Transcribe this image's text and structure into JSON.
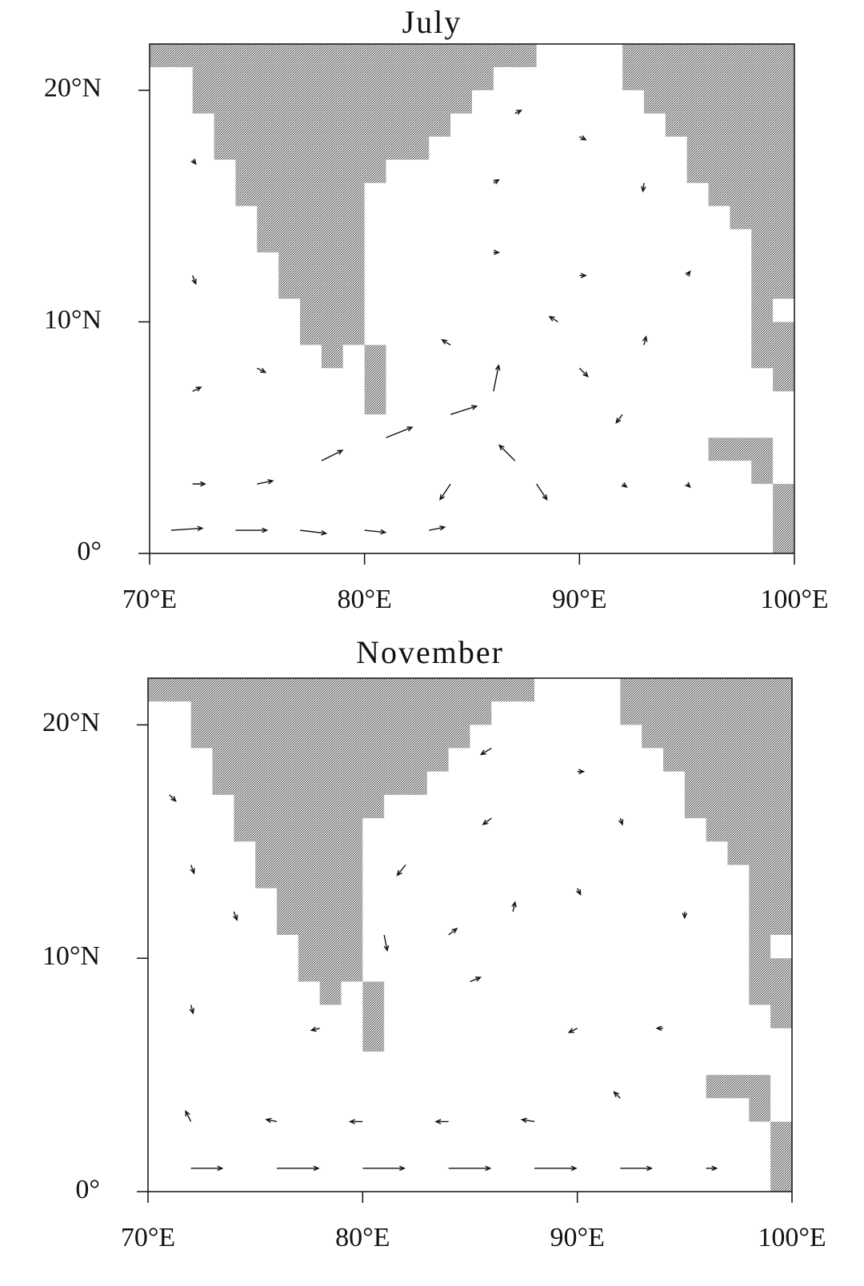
{
  "chart_data": [
    {
      "type": "quiver",
      "title": "July",
      "xlim": [
        70,
        100
      ],
      "ylim": [
        0,
        22
      ],
      "xticks": [
        {
          "value": 70,
          "label": "70°E"
        },
        {
          "value": 80,
          "label": "80°E"
        },
        {
          "value": 90,
          "label": "90°E"
        },
        {
          "value": 100,
          "label": "100°E"
        }
      ],
      "yticks": [
        {
          "value": 0,
          "label": "0°"
        },
        {
          "value": 10,
          "label": "10°N"
        },
        {
          "value": 20,
          "label": "20°N"
        }
      ],
      "color": "#111111",
      "lon": [
        71,
        74,
        77,
        80,
        83,
        72,
        75,
        78,
        81,
        84,
        86,
        87,
        84,
        88,
        72,
        75,
        72,
        72,
        84,
        90,
        92,
        89,
        93,
        86,
        90,
        86,
        90,
        87,
        93,
        92,
        95,
        95
      ],
      "lat": [
        1,
        1,
        1,
        1,
        1,
        3,
        3,
        4,
        5,
        6,
        7,
        4,
        3,
        3,
        7,
        8,
        12,
        17,
        9,
        8,
        6,
        10,
        9,
        13,
        12,
        16,
        18,
        19,
        16,
        3,
        3,
        12
      ],
      "u": [
        3,
        3,
        2.5,
        2,
        1.5,
        1.2,
        1.5,
        2,
        2.5,
        2.5,
        0.5,
        -1.5,
        -1,
        1,
        0.8,
        0.8,
        0.3,
        0.3,
        -0.8,
        0.8,
        -0.6,
        -0.8,
        0.2,
        0.5,
        0.6,
        0.5,
        0.6,
        0.6,
        -0.1,
        0.4,
        0.3,
        0.3
      ],
      "v": [
        0.2,
        0,
        -0.3,
        -0.2,
        0.3,
        0,
        0.3,
        1,
        1,
        0.8,
        2.5,
        1.5,
        -1.5,
        -1.5,
        0.4,
        -0.4,
        -0.8,
        -0.4,
        0.5,
        -0.8,
        -0.8,
        0.5,
        0.8,
        0,
        0,
        0.3,
        -0.3,
        0.3,
        -0.8,
        -0.3,
        -0.3,
        0.4
      ]
    },
    {
      "type": "quiver",
      "title": "November",
      "xlim": [
        70,
        100
      ],
      "ylim": [
        0,
        22
      ],
      "xticks": [
        {
          "value": 70,
          "label": "70°E"
        },
        {
          "value": 80,
          "label": "80°E"
        },
        {
          "value": 90,
          "label": "90°E"
        },
        {
          "value": 100,
          "label": "100°E"
        }
      ],
      "yticks": [
        {
          "value": 0,
          "label": "0°"
        },
        {
          "value": 10,
          "label": "10°N"
        },
        {
          "value": 20,
          "label": "20°N"
        }
      ],
      "color": "#111111",
      "lon": [
        72,
        76,
        80,
        84,
        88,
        92,
        96,
        72,
        76,
        80,
        84,
        88,
        92,
        72,
        72,
        71,
        74,
        82,
        81,
        84,
        85,
        87,
        86,
        86,
        90,
        92,
        90,
        95,
        90,
        94,
        78
      ],
      "lat": [
        1,
        1,
        1,
        1,
        1,
        1,
        1,
        3,
        3,
        3,
        3,
        3,
        4,
        8,
        14,
        17,
        12,
        14,
        11,
        11,
        9,
        12,
        16,
        19,
        18,
        16,
        13,
        12,
        7,
        7,
        7
      ],
      "u": [
        3,
        4,
        4,
        4,
        4,
        3,
        1,
        -0.5,
        -1,
        -1.2,
        -1.2,
        -1.2,
        -0.6,
        0.2,
        0.3,
        0.6,
        0.3,
        -0.8,
        0.3,
        0.8,
        1,
        0.2,
        -0.8,
        -1,
        0.6,
        0.2,
        0.3,
        0,
        -0.8,
        -0.6,
        -0.8
      ],
      "v": [
        0,
        0,
        0,
        0,
        0,
        0,
        0,
        1,
        0.2,
        0,
        0,
        0.2,
        0.6,
        -0.8,
        -0.8,
        -0.6,
        -0.8,
        -1,
        -1.5,
        0.6,
        0.4,
        0.9,
        -0.6,
        -0.6,
        0,
        -0.6,
        -0.6,
        -0.6,
        -0.4,
        0,
        -0.2
      ]
    }
  ]
}
